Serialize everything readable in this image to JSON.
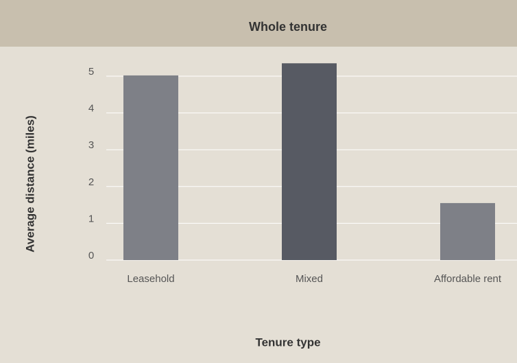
{
  "chart_data": {
    "type": "bar",
    "title": "Whole tenure",
    "xlabel": "Tenure type",
    "ylabel": "Average distance (miles)",
    "categories": [
      "Leasehold",
      "Mixed",
      "Affordable rent"
    ],
    "values": [
      5.02,
      5.35,
      1.55
    ],
    "colors": [
      "#7e8087",
      "#575a63",
      "#7e8087"
    ],
    "ylim": [
      0,
      5.5
    ],
    "yticks": [
      0,
      1,
      2,
      3,
      4,
      5
    ],
    "grid": true
  }
}
